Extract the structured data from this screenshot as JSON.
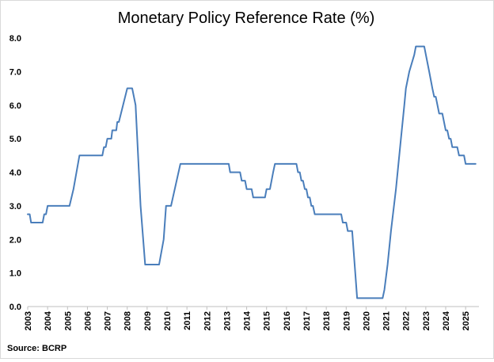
{
  "chart_data": {
    "type": "line",
    "title": "Monetary Policy Reference Rate (%)",
    "source": "Source:  BCRP",
    "xlabel": "",
    "ylabel": "",
    "xlim": [
      2003.0,
      2025.67
    ],
    "ylim": [
      0,
      8
    ],
    "y_ticks": [
      "0.0",
      "1.0",
      "2.0",
      "3.0",
      "4.0",
      "5.0",
      "6.0",
      "7.0",
      "8.0"
    ],
    "x_ticks": [
      "2003",
      "2004",
      "2005",
      "2006",
      "2007",
      "2008",
      "2009",
      "2010",
      "2011",
      "2012",
      "2013",
      "2014",
      "2015",
      "2016",
      "2017",
      "2018",
      "2019",
      "2020",
      "2021",
      "2022",
      "2023",
      "2024",
      "2025"
    ],
    "grid": false,
    "line_color": "#4a7ebb",
    "series": [
      {
        "name": "",
        "points": [
          [
            2003.0,
            2.75
          ],
          [
            2003.1,
            2.75
          ],
          [
            2003.17,
            2.5
          ],
          [
            2003.75,
            2.5
          ],
          [
            2003.83,
            2.75
          ],
          [
            2003.92,
            2.75
          ],
          [
            2004.0,
            3.0
          ],
          [
            2005.1,
            3.0
          ],
          [
            2005.3,
            3.5
          ],
          [
            2005.45,
            4.0
          ],
          [
            2005.6,
            4.5
          ],
          [
            2006.75,
            4.5
          ],
          [
            2006.83,
            4.75
          ],
          [
            2006.92,
            4.75
          ],
          [
            2007.0,
            5.0
          ],
          [
            2007.2,
            5.0
          ],
          [
            2007.25,
            5.25
          ],
          [
            2007.45,
            5.25
          ],
          [
            2007.5,
            5.5
          ],
          [
            2007.58,
            5.5
          ],
          [
            2008.0,
            6.5
          ],
          [
            2008.25,
            6.5
          ],
          [
            2008.42,
            6.0
          ],
          [
            2008.67,
            3.0
          ],
          [
            2008.9,
            1.25
          ],
          [
            2009.6,
            1.25
          ],
          [
            2009.83,
            2.0
          ],
          [
            2009.95,
            3.0
          ],
          [
            2010.2,
            3.0
          ],
          [
            2010.67,
            4.25
          ],
          [
            2013.1,
            4.25
          ],
          [
            2013.17,
            4.0
          ],
          [
            2013.67,
            4.0
          ],
          [
            2013.75,
            3.75
          ],
          [
            2013.92,
            3.75
          ],
          [
            2014.0,
            3.5
          ],
          [
            2014.25,
            3.5
          ],
          [
            2014.33,
            3.25
          ],
          [
            2014.92,
            3.25
          ],
          [
            2015.0,
            3.5
          ],
          [
            2015.17,
            3.5
          ],
          [
            2015.33,
            4.0
          ],
          [
            2015.42,
            4.25
          ],
          [
            2016.5,
            4.25
          ],
          [
            2016.58,
            4.0
          ],
          [
            2016.67,
            4.0
          ],
          [
            2016.75,
            3.75
          ],
          [
            2016.83,
            3.75
          ],
          [
            2016.92,
            3.5
          ],
          [
            2017.0,
            3.5
          ],
          [
            2017.08,
            3.25
          ],
          [
            2017.17,
            3.25
          ],
          [
            2017.25,
            3.0
          ],
          [
            2017.33,
            3.0
          ],
          [
            2017.42,
            2.75
          ],
          [
            2018.75,
            2.75
          ],
          [
            2018.83,
            2.5
          ],
          [
            2019.0,
            2.5
          ],
          [
            2019.08,
            2.25
          ],
          [
            2019.3,
            2.25
          ],
          [
            2019.55,
            0.25
          ],
          [
            2020.83,
            0.25
          ],
          [
            2020.92,
            0.5
          ],
          [
            2021.08,
            1.25
          ],
          [
            2021.25,
            2.25
          ],
          [
            2021.5,
            3.5
          ],
          [
            2021.75,
            5.0
          ],
          [
            2021.92,
            6.0
          ],
          [
            2022.0,
            6.5
          ],
          [
            2022.17,
            7.0
          ],
          [
            2022.42,
            7.5
          ],
          [
            2022.5,
            7.75
          ],
          [
            2022.92,
            7.75
          ],
          [
            2023.17,
            7.0
          ],
          [
            2023.33,
            6.5
          ],
          [
            2023.42,
            6.25
          ],
          [
            2023.5,
            6.25
          ],
          [
            2023.67,
            5.75
          ],
          [
            2023.83,
            5.75
          ],
          [
            2024.0,
            5.25
          ],
          [
            2024.08,
            5.25
          ],
          [
            2024.17,
            5.0
          ],
          [
            2024.25,
            5.0
          ],
          [
            2024.33,
            4.75
          ],
          [
            2024.58,
            4.75
          ],
          [
            2024.67,
            4.5
          ],
          [
            2024.92,
            4.5
          ],
          [
            2025.0,
            4.25
          ],
          [
            2025.5,
            4.25
          ]
        ]
      }
    ]
  }
}
